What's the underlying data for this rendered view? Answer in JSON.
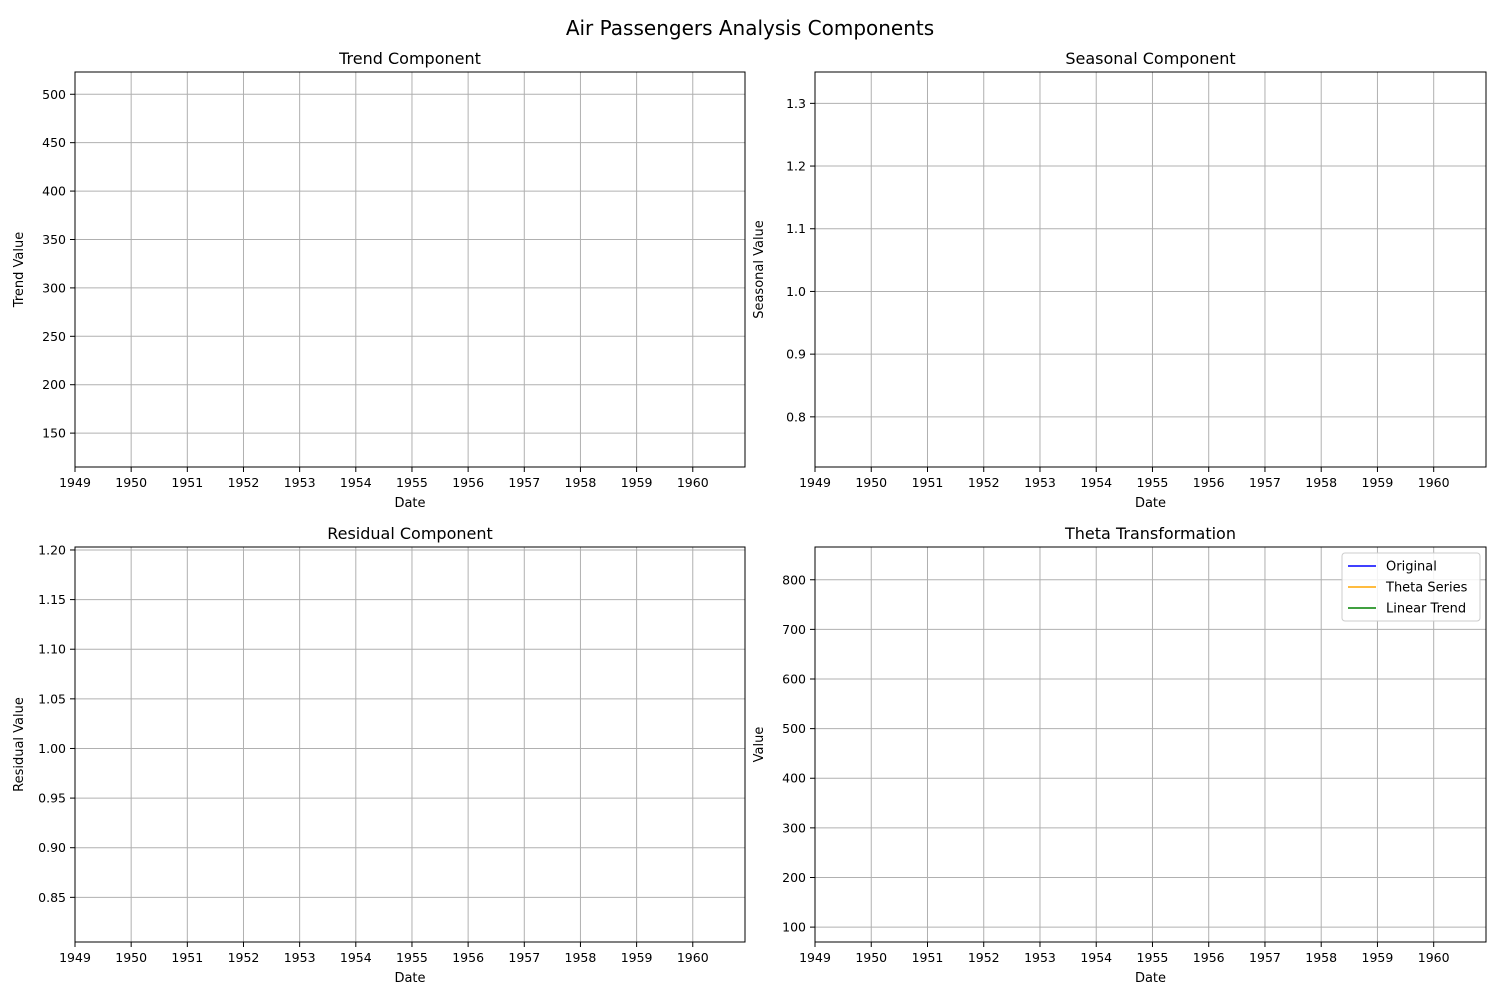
{
  "figure": {
    "title": "Air Passengers Analysis Components"
  },
  "chart_data": [
    {
      "type": "line",
      "title": "Trend Component",
      "xlabel": "Date",
      "ylabel": "Trend Value",
      "xlim": [
        1949,
        1960.93
      ],
      "ylim": [
        115,
        523
      ],
      "x_ticks": [
        "1949",
        "1950",
        "1951",
        "1952",
        "1953",
        "1954",
        "1955",
        "1956",
        "1957",
        "1958",
        "1959",
        "1960"
      ],
      "y_ticks": [
        "150",
        "200",
        "250",
        "300",
        "350",
        "400",
        "450",
        "500"
      ],
      "grid": true,
      "series": []
    },
    {
      "type": "line",
      "title": "Seasonal Component",
      "xlabel": "Date",
      "ylabel": "Seasonal Value",
      "xlim": [
        1949,
        1960.93
      ],
      "ylim": [
        0.72,
        1.35
      ],
      "x_ticks": [
        "1949",
        "1950",
        "1951",
        "1952",
        "1953",
        "1954",
        "1955",
        "1956",
        "1957",
        "1958",
        "1959",
        "1960"
      ],
      "y_ticks": [
        "0.8",
        "0.9",
        "1.0",
        "1.1",
        "1.2",
        "1.3"
      ],
      "grid": true,
      "series": []
    },
    {
      "type": "line",
      "title": "Residual Component",
      "xlabel": "Date",
      "ylabel": "Residual Value",
      "xlim": [
        1949,
        1960.93
      ],
      "ylim": [
        0.805,
        1.203
      ],
      "x_ticks": [
        "1949",
        "1950",
        "1951",
        "1952",
        "1953",
        "1954",
        "1955",
        "1956",
        "1957",
        "1958",
        "1959",
        "1960"
      ],
      "y_ticks": [
        "0.85",
        "0.90",
        "0.95",
        "1.00",
        "1.05",
        "1.10",
        "1.15",
        "1.20"
      ],
      "grid": true,
      "series": []
    },
    {
      "type": "line",
      "title": "Theta Transformation",
      "xlabel": "Date",
      "ylabel": "Value",
      "xlim": [
        1949,
        1960.93
      ],
      "ylim": [
        70,
        866
      ],
      "x_ticks": [
        "1949",
        "1950",
        "1951",
        "1952",
        "1953",
        "1954",
        "1955",
        "1956",
        "1957",
        "1958",
        "1959",
        "1960"
      ],
      "y_ticks": [
        "100",
        "200",
        "300",
        "400",
        "500",
        "600",
        "700",
        "800"
      ],
      "grid": true,
      "legend": {
        "position": "top-right",
        "entries": [
          {
            "label": "Original",
            "color": "#0000ff"
          },
          {
            "label": "Theta Series",
            "color": "#ffa500"
          },
          {
            "label": "Linear Trend",
            "color": "#008000"
          }
        ]
      },
      "series": [
        {
          "name": "Original",
          "color": "#0000ff",
          "values": []
        },
        {
          "name": "Theta Series",
          "color": "#ffa500",
          "values": []
        },
        {
          "name": "Linear Trend",
          "color": "#008000",
          "values": []
        }
      ]
    }
  ]
}
